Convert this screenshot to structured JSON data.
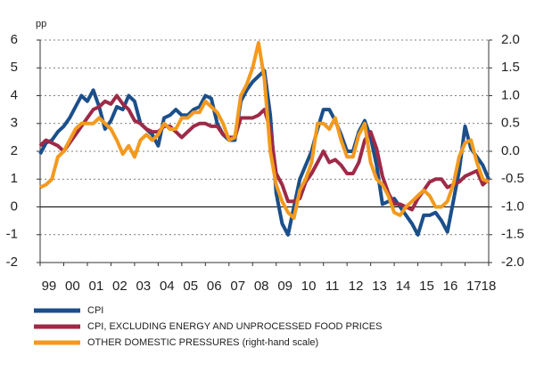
{
  "chart_data": {
    "type": "line",
    "ylabel": "pp",
    "categories": [
      "99",
      null,
      null,
      null,
      "00",
      null,
      null,
      null,
      "01",
      null,
      null,
      null,
      "02",
      null,
      null,
      null,
      "03",
      null,
      null,
      null,
      "04",
      null,
      null,
      null,
      "05",
      null,
      null,
      null,
      "06",
      null,
      null,
      null,
      "07",
      null,
      null,
      null,
      "08",
      null,
      null,
      null,
      "09",
      null,
      null,
      null,
      "10",
      null,
      null,
      null,
      "11",
      null,
      null,
      null,
      "12",
      null,
      null,
      null,
      "13",
      null,
      null,
      null,
      "14",
      null,
      null,
      null,
      "15",
      null,
      null,
      null,
      "16",
      null,
      null,
      null,
      "17",
      null,
      null,
      null,
      "18"
    ],
    "ylim": [
      -2,
      6
    ],
    "yticks": [
      -2,
      -1,
      0,
      1,
      2,
      3,
      4,
      5,
      6
    ],
    "y2lim": [
      -2,
      2
    ],
    "y2ticks": [
      {
        "value": -2,
        "label": "-2.0"
      },
      {
        "value": -1.5,
        "label": "-1.5"
      },
      {
        "value": -1,
        "label": "-1.0"
      },
      {
        "value": -0.5,
        "label": "-0.5"
      },
      {
        "value": 0,
        "label": "0.0"
      },
      {
        "value": 0.5,
        "label": "0.5"
      },
      {
        "value": 1,
        "label": "1.0"
      },
      {
        "value": 1.5,
        "label": "1.5"
      },
      {
        "value": 2,
        "label": "2.0"
      }
    ],
    "grid": true,
    "series": [
      {
        "name": "CPI",
        "color": "#1b4f8a",
        "values": [
          1.9,
          2.3,
          2.4,
          2.7,
          2.9,
          3.2,
          3.6,
          4.0,
          3.8,
          4.2,
          3.6,
          2.8,
          3.1,
          3.6,
          3.5,
          4.0,
          3.8,
          3.0,
          2.8,
          2.6,
          2.2,
          3.2,
          3.3,
          3.5,
          3.3,
          3.3,
          3.5,
          3.6,
          4.0,
          3.9,
          3.0,
          2.6,
          2.4,
          2.4,
          3.8,
          4.2,
          4.5,
          4.7,
          4.9,
          3.3,
          0.5,
          -0.6,
          -1.0,
          0.0,
          1.0,
          1.5,
          2.0,
          2.8,
          3.5,
          3.5,
          3.1,
          2.6,
          2.0,
          2.0,
          2.7,
          3.1,
          2.5,
          1.5,
          0.1,
          0.2,
          0.3,
          0.0,
          -0.3,
          -0.6,
          -1.0,
          -0.3,
          -0.3,
          -0.2,
          -0.5,
          -0.9,
          0.2,
          1.3,
          2.9,
          2.1,
          1.8,
          1.5,
          1.0
        ]
      },
      {
        "name": "CPI, EXCLUDING ENERGY AND UNPROCESSED FOOD PRICES",
        "color": "#9e2a47",
        "values": [
          2.2,
          2.4,
          2.3,
          2.2,
          2.0,
          2.3,
          2.6,
          2.9,
          3.2,
          3.5,
          3.6,
          3.8,
          3.7,
          4.0,
          3.7,
          3.5,
          3.1,
          3.0,
          2.8,
          2.7,
          2.7,
          2.9,
          2.9,
          2.7,
          2.5,
          2.7,
          2.9,
          3.0,
          3.0,
          2.9,
          2.9,
          2.6,
          2.5,
          2.5,
          3.2,
          3.2,
          3.2,
          3.3,
          3.5,
          2.8,
          1.2,
          0.8,
          0.2,
          0.2,
          0.3,
          0.9,
          1.2,
          1.6,
          2.0,
          1.6,
          1.7,
          1.5,
          1.2,
          1.2,
          1.6,
          2.4,
          2.7,
          2.1,
          1.1,
          0.5,
          0.1,
          0.1,
          0.0,
          -0.1,
          0.3,
          0.6,
          0.9,
          1.0,
          1.0,
          0.7,
          0.8,
          0.9,
          1.1,
          1.2,
          1.3,
          0.8,
          1.0
        ]
      },
      {
        "name": "OTHER DOMESTIC PRESSURES (right-hand scale)",
        "color": "#f39a1e",
        "axis": "y2",
        "values": [
          -0.65,
          -0.6,
          -0.5,
          -0.1,
          0.0,
          0.2,
          0.4,
          0.5,
          0.5,
          0.5,
          0.6,
          0.5,
          0.4,
          0.2,
          -0.05,
          0.1,
          -0.1,
          0.2,
          0.3,
          0.2,
          0.3,
          0.5,
          0.4,
          0.4,
          0.6,
          0.6,
          0.7,
          0.7,
          0.9,
          0.8,
          0.7,
          0.5,
          0.2,
          0.25,
          1.0,
          1.2,
          1.5,
          1.95,
          1.3,
          0.0,
          -0.6,
          -0.9,
          -1.1,
          -1.2,
          -0.7,
          -0.5,
          -0.2,
          0.5,
          0.5,
          0.4,
          0.6,
          0.2,
          -0.1,
          -0.1,
          0.3,
          0.5,
          -0.2,
          -0.5,
          -0.6,
          -0.8,
          -1.1,
          -1.15,
          -1.0,
          -0.9,
          -0.8,
          -0.7,
          -0.8,
          -1.0,
          -1.0,
          -0.9,
          -0.6,
          -0.1,
          0.15,
          0.2,
          -0.2,
          -0.5,
          -0.55
        ]
      }
    ]
  }
}
